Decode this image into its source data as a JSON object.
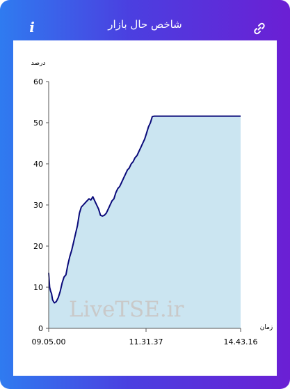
{
  "header": {
    "title": "شاخص حال بازار",
    "info_icon": "info-icon",
    "link_icon": "link-icon"
  },
  "colors": {
    "gradient_start": "#2f7bf0",
    "gradient_end": "#6b1fd4",
    "line": "#0a0a7a",
    "area": "#cbe5f1"
  },
  "chart_data": {
    "type": "area",
    "ylabel": "درصد",
    "xlabel": "زمان",
    "ylim": [
      0,
      60
    ],
    "y_ticks": [
      "0",
      "10",
      "20",
      "30",
      "40",
      "50",
      "60"
    ],
    "x_ticks": [
      "09.05.00",
      "11.31.37",
      "14.43.16"
    ],
    "watermark": "LiveTSE.ir",
    "series": [
      {
        "x": [
          0,
          0.2,
          0.5,
          1,
          1.5,
          2,
          2.5,
          3,
          4,
          5,
          6,
          7,
          8,
          9,
          10,
          11,
          12,
          13,
          14,
          15,
          16,
          17,
          18,
          19,
          20,
          21,
          22,
          23,
          24,
          25,
          26,
          27,
          28,
          29,
          30,
          31,
          32,
          33,
          34,
          35,
          36,
          37,
          38,
          39,
          40,
          41,
          42,
          43,
          44,
          45,
          46,
          47,
          48,
          49,
          50,
          51,
          52,
          53,
          54,
          55,
          56,
          57,
          58,
          59,
          60,
          62,
          64,
          66,
          68,
          70,
          72,
          74,
          76,
          78,
          80,
          85,
          90,
          95,
          100
        ],
        "values": [
          13.5,
          12,
          10,
          9,
          8.5,
          7,
          6.5,
          6.2,
          6.5,
          7.5,
          9,
          11,
          12.5,
          13,
          15.5,
          17.5,
          19,
          21,
          23,
          25,
          28,
          29.5,
          30,
          30.5,
          31,
          31.5,
          31.2,
          32,
          31,
          30,
          29,
          27.5,
          27.3,
          27.5,
          28,
          29,
          30,
          31,
          31.5,
          33,
          34,
          34.5,
          35.5,
          36.5,
          37.5,
          38.5,
          39,
          40,
          40.5,
          41.5,
          42,
          43,
          44,
          45,
          46,
          47.5,
          49,
          50,
          51.5,
          51.6,
          51.6,
          51.6,
          51.6,
          51.6,
          51.6,
          51.6,
          51.6,
          51.6,
          51.6,
          51.6,
          51.6,
          51.6,
          51.6,
          51.6,
          51.6,
          51.6,
          51.6,
          51.6,
          51.6
        ]
      }
    ]
  }
}
